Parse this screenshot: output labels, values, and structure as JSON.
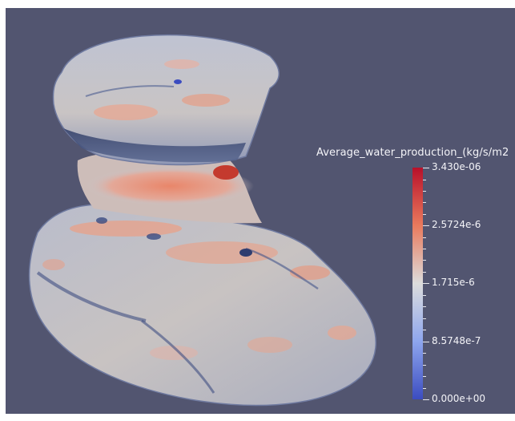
{
  "colorbar": {
    "title": "Average_water_production_(kg/s/m2",
    "labels": {
      "max": "3.430e-06",
      "q3": "2.5724e-6",
      "mid": "1.715e-6",
      "q1": "8.5748e-7",
      "min": "0.000e+00"
    },
    "colors": {
      "high": "#b8102a",
      "mid": "#dcdcdc",
      "low": "#3b4cc0"
    }
  },
  "background_color": "#525570"
}
